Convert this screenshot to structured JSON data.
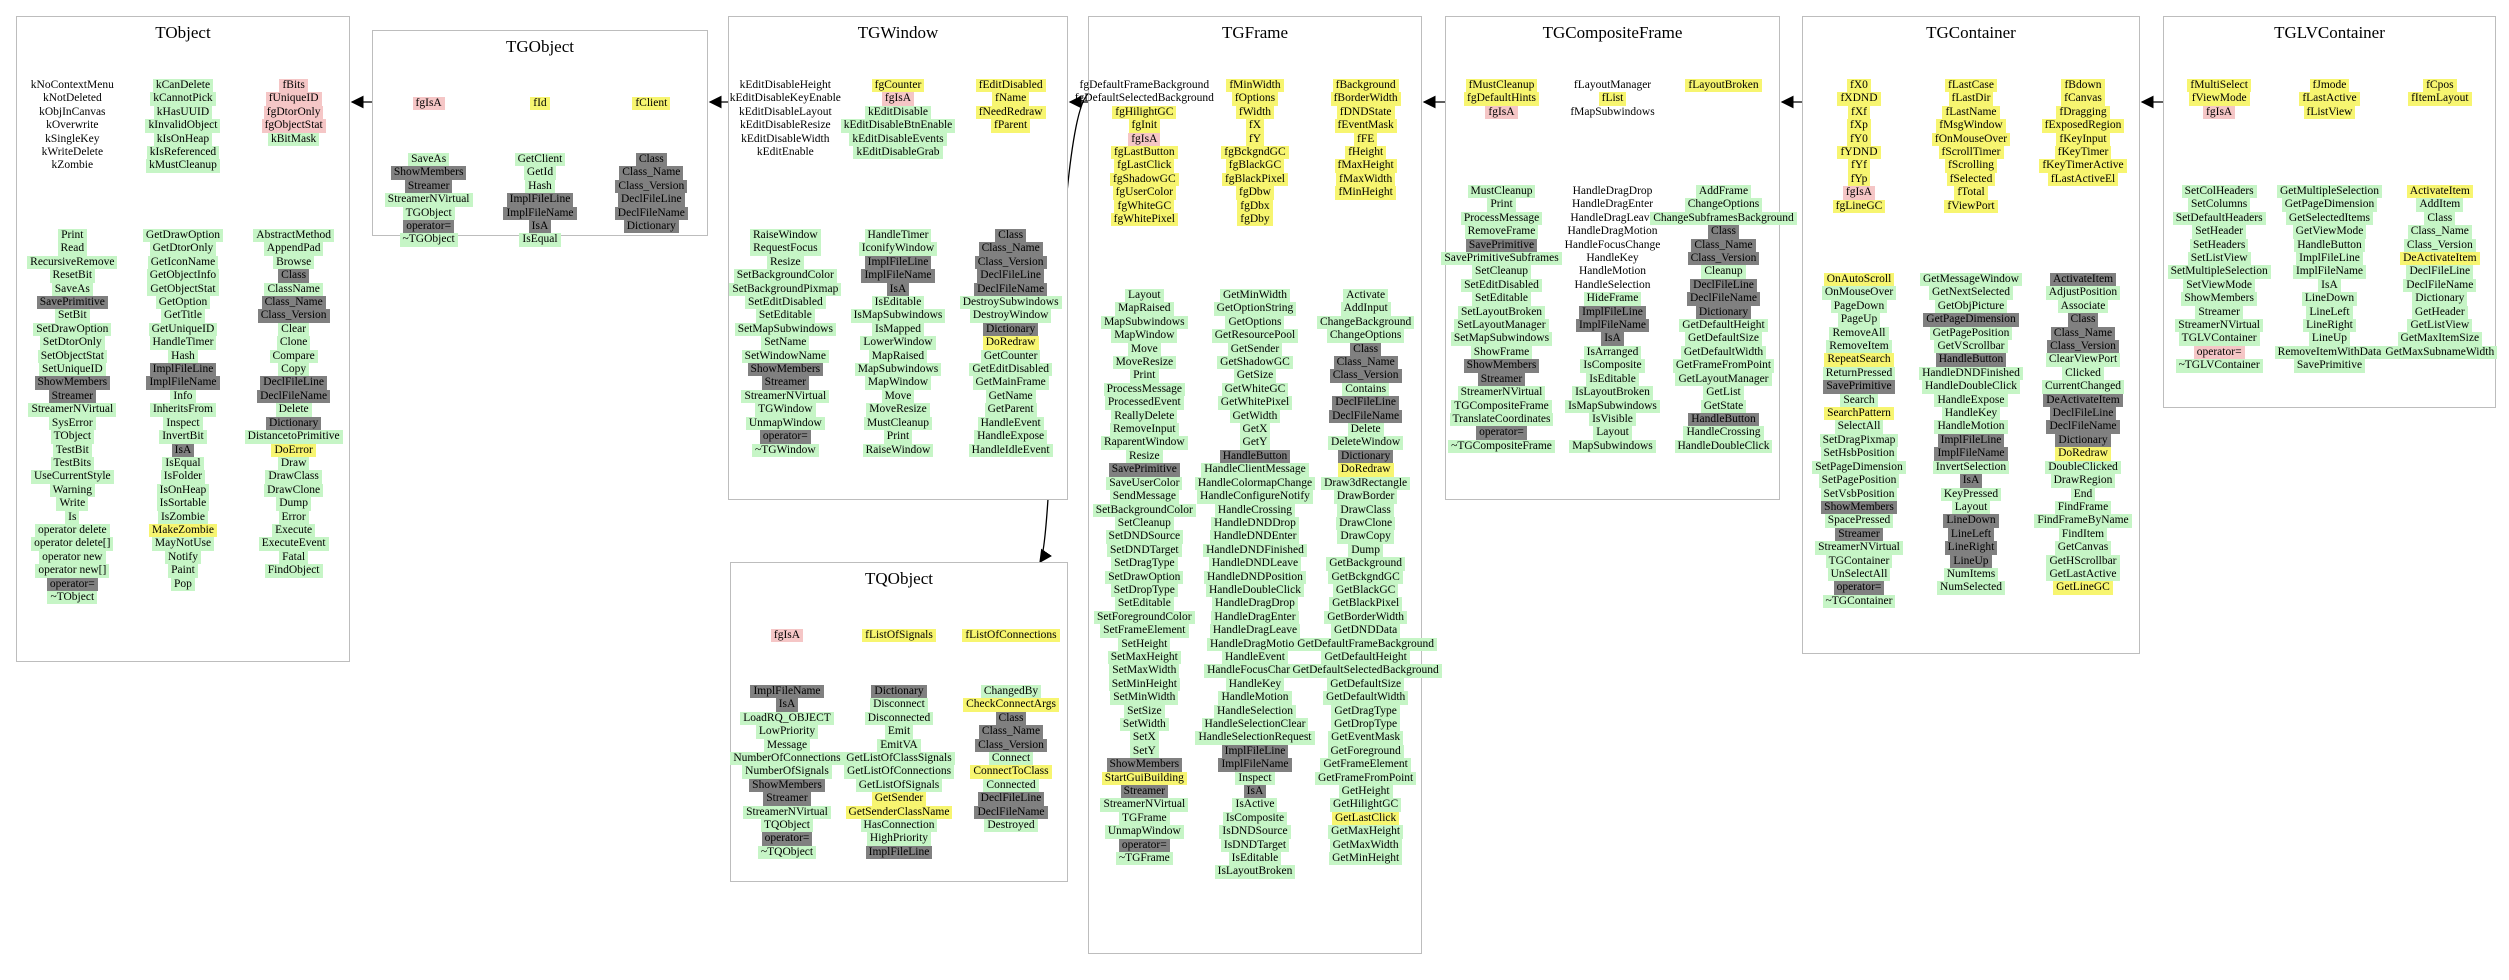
{
  "colors": {
    "public": "#c6f5c6",
    "protected": "#f5c6c6",
    "highlight": "#f7f570",
    "inherited": "#808080",
    "border": "#bdbdbd"
  },
  "boxes": [
    {
      "key": "tobject",
      "title": "TObject",
      "sections": [
        [
          [
            "w:kNoContextMenu",
            "w:kNotDeleted",
            "w:kObjInCanvas",
            "w:kOverwrite",
            "w:kSingleKey",
            "w:kWriteDelete",
            "w:kZombie"
          ],
          [
            "g:kCanDelete",
            "g:kCannotPick",
            "g:kHasUUID",
            "g:kInvalidObject",
            "g:kIsOnHeap",
            "g:kIsReferenced",
            "g:kMustCleanup"
          ],
          [
            "p:fBits",
            "p:fUniqueID",
            "p:fgDtorOnly",
            "p:fgObjectStat",
            "g:kBitMask"
          ]
        ],
        [
          [
            "g:Print",
            "g:Read",
            "g:RecursiveRemove",
            "g:ResetBit",
            "g:SaveAs",
            "d:SavePrimitive",
            "g:SetBit",
            "g:SetDrawOption",
            "g:SetDtorOnly",
            "g:SetObjectStat",
            "g:SetUniqueID",
            "d:ShowMembers",
            "d:Streamer",
            "g:StreamerNVirtual",
            "g:SysError",
            "g:TObject",
            "g:TestBit",
            "g:TestBits",
            "g:UseCurrentStyle",
            "g:Warning",
            "g:Write",
            "g:Is",
            "g:operator delete",
            "g:operator delete[]",
            "g:operator new",
            "g:operator new[]",
            "d:operator=",
            "g:~TObject"
          ],
          [
            "g:GetDrawOption",
            "g:GetDtorOnly",
            "g:GetIconName",
            "g:GetObjectInfo",
            "g:GetObjectStat",
            "g:GetOption",
            "g:GetTitle",
            "g:GetUniqueID",
            "g:HandleTimer",
            "g:Hash",
            "d:ImplFileLine",
            "d:ImplFileName",
            "g:Info",
            "g:InheritsFrom",
            "g:Inspect",
            "g:InvertBit",
            "d:IsA",
            "g:IsEqual",
            "g:IsFolder",
            "g:IsOnHeap",
            "g:IsSortable",
            "g:IsZombie",
            "y:MakeZombie",
            "g:MayNotUse",
            "g:Notify",
            "g:Paint",
            "g:Pop"
          ],
          [
            "g:AbstractMethod",
            "g:AppendPad",
            "g:Browse",
            "d:Class",
            "g:ClassName",
            "d:Class_Name",
            "d:Class_Version",
            "g:Clear",
            "g:Clone",
            "g:Compare",
            "g:Copy",
            "d:DeclFileLine",
            "d:DeclFileName",
            "g:Delete",
            "d:Dictionary",
            "g:DistancetoPrimitive",
            "y:DoError",
            "g:Draw",
            "g:DrawClass",
            "g:DrawClone",
            "g:Dump",
            "g:Error",
            "g:Execute",
            "g:ExecuteEvent",
            "g:Fatal",
            "g:FindObject"
          ]
        ]
      ]
    },
    {
      "key": "tgobject",
      "title": "TGObject",
      "sections": [
        [
          [
            "p:fgIsA"
          ],
          [
            "y:fId"
          ],
          [
            "y:fClient"
          ]
        ],
        [
          [
            "g:SaveAs",
            "d:ShowMembers",
            "d:Streamer",
            "g:StreamerNVirtual",
            "g:TGObject",
            "d:operator=",
            "g:~TGObject"
          ],
          [
            "g:GetClient",
            "g:GetId",
            "g:Hash",
            "d:ImplFileLine",
            "d:ImplFileName",
            "d:IsA",
            "g:IsEqual"
          ],
          [
            "d:Class",
            "d:Class_Name",
            "d:Class_Version",
            "d:DeclFileLine",
            "d:DeclFileName",
            "d:Dictionary"
          ]
        ]
      ]
    },
    {
      "key": "tgwindow",
      "title": "TGWindow",
      "sections": [
        [
          [
            "w:kEditDisableHeight",
            "w:kEditDisableKeyEnable",
            "w:kEditDisableLayout",
            "w:kEditDisableResize",
            "w:kEditDisableWidth",
            "w:kEditEnable"
          ],
          [
            "y:fgCounter",
            "p:fgIsA",
            "g:kEditDisable",
            "g:kEditDisableBtnEnable",
            "g:kEditDisableEvents",
            "g:kEditDisableGrab"
          ],
          [
            "y:fEditDisabled",
            "y:fName",
            "y:fNeedRedraw",
            "y:fParent"
          ]
        ],
        [
          [
            "g:RaiseWindow",
            "g:RequestFocus",
            "g:Resize",
            "g:SetBackgroundColor",
            "g:SetBackgroundPixmap",
            "g:SetEditDisabled",
            "g:SetEditable",
            "g:SetMapSubwindows",
            "g:SetName",
            "g:SetWindowName",
            "d:ShowMembers",
            "d:Streamer",
            "g:StreamerNVirtual",
            "g:TGWindow",
            "g:UnmapWindow",
            "d:operator=",
            "g:~TGWindow"
          ],
          [
            "g:HandleTimer",
            "g:IconifyWindow",
            "d:ImplFileLine",
            "d:ImplFileName",
            "d:IsA",
            "g:IsEditable",
            "g:IsMapSubwindows",
            "g:IsMapped",
            "g:LowerWindow",
            "g:MapRaised",
            "g:MapSubwindows",
            "g:MapWindow",
            "g:Move",
            "g:MoveResize",
            "g:MustCleanup",
            "g:Print",
            "g:RaiseWindow"
          ],
          [
            "d:Class",
            "d:Class_Name",
            "d:Class_Version",
            "d:DeclFileLine",
            "d:DeclFileName",
            "g:DestroySubwindows",
            "g:DestroyWindow",
            "d:Dictionary",
            "y:DoRedraw",
            "g:GetCounter",
            "g:GetEditDisabled",
            "g:GetMainFrame",
            "g:GetName",
            "g:GetParent",
            "g:HandleEvent",
            "g:HandleExpose",
            "g:HandleIdleEvent"
          ]
        ]
      ]
    },
    {
      "key": "tgframe",
      "title": "TGFrame",
      "sections": [
        [
          [
            "w:fgDefaultFrameBackground",
            "w:fgDefaultSelectedBackground",
            "y:fgHilightGC",
            "y:fgInit",
            "p:fgIsA",
            "y:fgLastButton",
            "y:fgLastClick",
            "y:fgShadowGC",
            "y:fgUserColor",
            "y:fgWhiteGC",
            "y:fgWhitePixel"
          ],
          [
            "y:fMinWidth",
            "y:fOptions",
            "y:fWidth",
            "y:fX",
            "y:fY",
            "y:fgBckgndGC",
            "y:fgBlackGC",
            "y:fgBlackPixel",
            "y:fgDbw",
            "y:fgDbx",
            "y:fgDby"
          ],
          [
            "y:fBackground",
            "y:fBorderWidth",
            "y:fDNDState",
            "y:fEventMask",
            "y:fFE",
            "y:fHeight",
            "y:fMaxHeight",
            "y:fMaxWidth",
            "y:fMinHeight"
          ]
        ],
        [
          [
            "g:Layout",
            "g:MapRaised",
            "g:MapSubwindows",
            "g:MapWindow",
            "g:Move",
            "g:MoveResize",
            "g:Print",
            "g:ProcessMessage",
            "g:ProcessedEvent",
            "g:ReallyDelete",
            "g:RemoveInput",
            "g:RaparentWindow",
            "g:Resize",
            "d:SavePrimitive",
            "g:SaveUserColor",
            "g:SendMessage",
            "g:SetBackgroundColor",
            "g:SetCleanup",
            "g:SetDNDSource",
            "g:SetDNDTarget",
            "g:SetDragType",
            "g:SetDrawOption",
            "g:SetDropType",
            "g:SetEditable",
            "g:SetForegroundColor",
            "g:SetFrameElement",
            "g:SetHeight",
            "g:SetMaxHeight",
            "g:SetMaxWidth",
            "g:SetMinHeight",
            "g:SetMinWidth",
            "g:SetSize",
            "g:SetWidth",
            "g:SetX",
            "g:SetY",
            "d:ShowMembers",
            "y:StartGuiBuilding",
            "d:Streamer",
            "g:StreamerNVirtual",
            "g:TGFrame",
            "g:UnmapWindow",
            "d:operator=",
            "g:~TGFrame"
          ],
          [
            "g:GetMinWidth",
            "g:GetOptionString",
            "g:GetOptions",
            "g:GetResourcePool",
            "g:GetSender",
            "g:GetShadowGC",
            "g:GetSize",
            "g:GetWhiteGC",
            "g:GetWhitePixel",
            "g:GetWidth",
            "g:GetX",
            "g:GetY",
            "d:HandleButton",
            "g:HandleClientMessage",
            "g:HandleColormapChange",
            "g:HandleConfigureNotify",
            "g:HandleCrossing",
            "g:HandleDNDDrop",
            "g:HandleDNDEnter",
            "g:HandleDNDFinished",
            "g:HandleDNDLeave",
            "g:HandleDNDPosition",
            "g:HandleDoubleClick",
            "g:HandleDragDrop",
            "g:HandleDragEnter",
            "g:HandleDragLeave",
            "g:HandleDragMotion",
            "g:HandleEvent",
            "g:HandleFocusChange",
            "g:HandleKey",
            "g:HandleMotion",
            "g:HandleSelection",
            "g:HandleSelectionClear",
            "g:HandleSelectionRequest",
            "d:ImplFileLine",
            "d:ImplFileName",
            "g:Inspect",
            "d:IsA",
            "g:IsActive",
            "g:IsComposite",
            "g:IsDNDSource",
            "g:IsDNDTarget",
            "g:IsEditable",
            "g:IsLayoutBroken"
          ],
          [
            "g:Activate",
            "g:AddInput",
            "g:ChangeBackground",
            "g:ChangeOptions",
            "d:Class",
            "d:Class_Name",
            "d:Class_Version",
            "g:Contains",
            "d:DeclFileLine",
            "d:DeclFileName",
            "g:Delete",
            "g:DeleteWindow",
            "d:Dictionary",
            "y:DoRedraw",
            "g:Draw3dRectangle",
            "g:DrawBorder",
            "g:DrawClass",
            "g:DrawClone",
            "g:DrawCopy",
            "g:Dump",
            "g:GetBackground",
            "g:GetBckgndGC",
            "g:GetBlackGC",
            "g:GetBlackPixel",
            "g:GetBorderWidth",
            "g:GetDNDData",
            "g:GetDefaultFrameBackground",
            "g:GetDefaultHeight",
            "g:GetDefaultSelectedBackground",
            "g:GetDefaultSize",
            "g:GetDefaultWidth",
            "g:GetDragType",
            "g:GetDropType",
            "g:GetEventMask",
            "g:GetForeground",
            "g:GetFrameElement",
            "g:GetFrameFromPoint",
            "g:GetHeight",
            "g:GetHilightGC",
            "y:GetLastClick",
            "g:GetMaxHeight",
            "g:GetMaxWidth",
            "g:GetMinHeight"
          ]
        ]
      ]
    },
    {
      "key": "tgcompositeframe",
      "title": "TGCompositeFrame",
      "sections": [
        [
          [
            "y:fMustCleanup",
            "y:fgDefaultHints",
            "p:fgIsA"
          ],
          [
            "w:fLayoutManager",
            "y:fList",
            "w:fMapSubwindows"
          ],
          [
            "y:fLayoutBroken"
          ]
        ],
        [
          [
            "g:MustCleanup",
            "g:Print",
            "g:ProcessMessage",
            "g:RemoveFrame",
            "d:SavePrimitive",
            "g:SavePrimitiveSubframes",
            "g:SetCleanup",
            "g:SetEditDisabled",
            "g:SetEditable",
            "g:SetLayoutBroken",
            "g:SetLayoutManager",
            "g:SetMapSubwindows",
            "g:ShowFrame",
            "d:ShowMembers",
            "d:Streamer",
            "g:StreamerNVirtual",
            "g:TGCompositeFrame",
            "g:TranslateCoordinates",
            "d:operator=",
            "g:~TGCompositeFrame"
          ],
          [
            "w:HandleDragDrop",
            "w:HandleDragEnter",
            "w:HandleDragLeave",
            "w:HandleDragMotion",
            "w:HandleFocusChange",
            "w:HandleKey",
            "w:HandleMotion",
            "w:HandleSelection",
            "g:HideFrame",
            "d:ImplFileLine",
            "d:ImplFileName",
            "d:IsA",
            "g:IsArranged",
            "g:IsComposite",
            "g:IsEditable",
            "g:IsLayoutBroken",
            "g:IsMapSubwindows",
            "g:IsVisible",
            "g:Layout",
            "g:MapSubwindows"
          ],
          [
            "g:AddFrame",
            "g:ChangeOptions",
            "g:ChangeSubframesBackground",
            "d:Class",
            "d:Class_Name",
            "d:Class_Version",
            "g:Cleanup",
            "d:DeclFileLine",
            "d:DeclFileName",
            "d:Dictionary",
            "g:GetDefaultHeight",
            "g:GetDefaultSize",
            "g:GetDefaultWidth",
            "g:GetFrameFromPoint",
            "g:GetLayoutManager",
            "g:GetList",
            "g:GetState",
            "d:HandleButton",
            "g:HandleCrossing",
            "g:HandleDoubleClick"
          ]
        ]
      ]
    },
    {
      "key": "tgcontainer",
      "title": "TGContainer",
      "sections": [
        [
          [
            "y:fX0",
            "y:fXDND",
            "y:fXf",
            "y:fXp",
            "y:fY0",
            "y:fYDND",
            "y:fYf",
            "y:fYp",
            "p:fgIsA",
            "y:fgLineGC"
          ],
          [
            "y:fLastCase",
            "y:fLastDir",
            "y:fLastName",
            "y:fMsgWindow",
            "y:fOnMouseOver",
            "y:fScrollTimer",
            "y:fScrolling",
            "y:fSelected",
            "y:fTotal",
            "y:fViewPort"
          ],
          [
            "y:fBdown",
            "y:fCanvas",
            "y:fDragging",
            "y:fExposedRegion",
            "y:fKeyInput",
            "y:fKeyTimer",
            "y:fKeyTimerActive",
            "y:fLastActiveEl"
          ]
        ],
        [
          [
            "y:OnAutoScroll",
            "g:OnMouseOver",
            "g:PageDown",
            "g:PageUp",
            "g:RemoveAll",
            "g:RemoveItem",
            "y:RepeatSearch",
            "g:ReturnPressed",
            "d:SavePrimitive",
            "g:Search",
            "y:SearchPattern",
            "g:SelectAll",
            "g:SetDragPixmap",
            "g:SetHsbPosition",
            "g:SetPageDimension",
            "g:SetPagePosition",
            "g:SetVsbPosition",
            "d:ShowMembers",
            "g:SpacePressed",
            "d:Streamer",
            "g:StreamerNVirtual",
            "g:TGContainer",
            "g:UnSelectAll",
            "d:operator=",
            "g:~TGContainer"
          ],
          [
            "g:GetMessageWindow",
            "g:GetNextSelected",
            "g:GetObjPicture",
            "d:GetPageDimension",
            "g:GetPagePosition",
            "g:GetVScrollbar",
            "d:HandleButton",
            "g:HandleDNDFinished",
            "g:HandleDoubleClick",
            "g:HandleExpose",
            "g:HandleKey",
            "g:HandleMotion",
            "d:ImplFileLine",
            "d:ImplFileName",
            "g:InvertSelection",
            "d:IsA",
            "g:KeyPressed",
            "g:Layout",
            "d:LineDown",
            "d:LineLeft",
            "d:LineRight",
            "d:LineUp",
            "g:NumItems",
            "g:NumSelected"
          ],
          [
            "d:ActivateItem",
            "g:AdjustPosition",
            "g:Associate",
            "d:Class",
            "d:Class_Name",
            "d:Class_Version",
            "g:ClearViewPort",
            "g:Clicked",
            "g:CurrentChanged",
            "d:DeActivateItem",
            "d:DeclFileLine",
            "d:DeclFileName",
            "d:Dictionary",
            "y:DoRedraw",
            "g:DoubleClicked",
            "g:DrawRegion",
            "g:End",
            "g:FindFrame",
            "g:FindFrameByName",
            "g:FindItem",
            "g:GetCanvas",
            "g:GetHScrollbar",
            "g:GetLastActive",
            "y:GetLineGC"
          ]
        ]
      ]
    },
    {
      "key": "tglvcontainer",
      "title": "TGLVContainer",
      "sections": [
        [
          [
            "y:fMultiSelect",
            "y:fViewMode",
            "p:fgIsA"
          ],
          [
            "y:fJmode",
            "y:fLastActive",
            "y:fListView"
          ],
          [
            "y:fCpos",
            "y:fItemLayout"
          ]
        ],
        [
          [
            "g:SetColHeaders",
            "g:SetColumns",
            "g:SetDefaultHeaders",
            "g:SetHeader",
            "g:SetHeaders",
            "g:SetListView",
            "g:SetMultipleSelection",
            "g:SetViewMode",
            "g:ShowMembers",
            "g:Streamer",
            "g:StreamerNVirtual",
            "g:TGLVContainer",
            "p:operator=",
            "g:~TGLVContainer"
          ],
          [
            "g:GetMultipleSelection",
            "g:GetPageDimension",
            "g:GetSelectedItems",
            "g:GetViewMode",
            "g:HandleButton",
            "g:ImplFileLine",
            "g:ImplFileName",
            "g:IsA",
            "g:LineDown",
            "g:LineLeft",
            "g:LineRight",
            "g:LineUp",
            "g:RemoveItemWithData",
            "g:SavePrimitive"
          ],
          [
            "y:ActivateItem",
            "g:AddItem",
            "g:Class",
            "g:Class_Name",
            "g:Class_Version",
            "y:DeActivateItem",
            "g:DeclFileLine",
            "g:DeclFileName",
            "g:Dictionary",
            "g:GetHeader",
            "g:GetListView",
            "g:GetMaxItemSize",
            "g:GetMaxSubnameWidth"
          ]
        ]
      ]
    },
    {
      "key": "tqobject",
      "title": "TQObject",
      "sections": [
        [
          [
            "p:fgIsA"
          ],
          [
            "y:fListOfSignals"
          ],
          [
            "y:fListOfConnections"
          ]
        ],
        [
          [
            "d:ImplFileName",
            "d:IsA",
            "g:LoadRQ_OBJECT",
            "g:LowPriority",
            "g:Message",
            "g:NumberOfConnections",
            "g:NumberOfSignals",
            "d:ShowMembers",
            "d:Streamer",
            "g:StreamerNVirtual",
            "g:TQObject",
            "d:operator=",
            "g:~TQObject"
          ],
          [
            "d:Dictionary",
            "g:Disconnect",
            "g:Disconnected",
            "g:Emit",
            "g:EmitVA",
            "g:GetListOfClassSignals",
            "g:GetListOfConnections",
            "g:GetListOfSignals",
            "y:GetSender",
            "y:GetSenderClassName",
            "g:HasConnection",
            "g:HighPriority",
            "d:ImplFileLine"
          ],
          [
            "g:ChangedBy",
            "y:CheckConnectArgs",
            "d:Class",
            "d:Class_Name",
            "d:Class_Version",
            "g:Connect",
            "y:ConnectToClass",
            "g:Connected",
            "d:DeclFileLine",
            "d:DeclFileName",
            "g:Destroyed"
          ]
        ]
      ]
    }
  ]
}
